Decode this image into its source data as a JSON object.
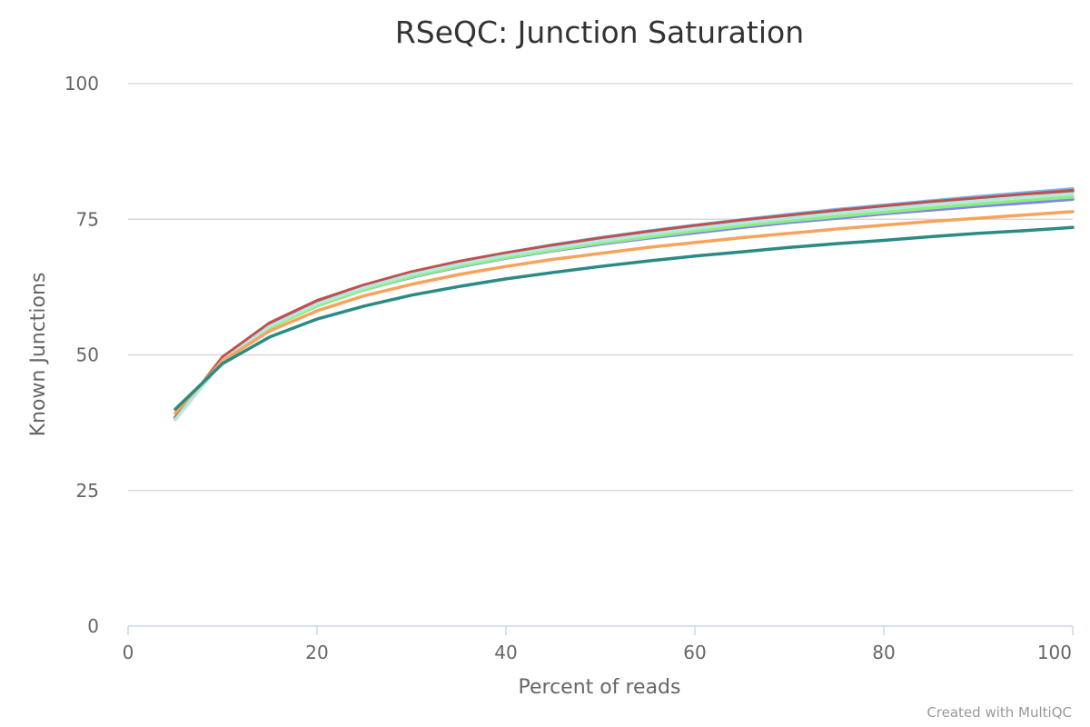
{
  "chart_data": {
    "type": "line",
    "title": "RSeQC: Junction Saturation",
    "xlabel": "Percent of reads",
    "ylabel": "Known Junctions",
    "xlim": [
      0,
      100
    ],
    "ylim": [
      0,
      100
    ],
    "x_ticks": [
      "0",
      "20",
      "40",
      "60",
      "80",
      "100"
    ],
    "y_ticks": [
      "0",
      "25",
      "50",
      "75",
      "100"
    ],
    "grid": true,
    "credit": "Created with MultiQC",
    "x": [
      5,
      10,
      15,
      20,
      25,
      30,
      35,
      40,
      45,
      50,
      55,
      60,
      65,
      70,
      75,
      80,
      85,
      90,
      95,
      100
    ],
    "series": [
      {
        "color": "#7cb5ec",
        "values": [
          38.3,
          49.3,
          55.7,
          59.8,
          62.8,
          65.2,
          67.2,
          68.8,
          70.3,
          71.6,
          72.8,
          73.9,
          74.9,
          75.9,
          76.8,
          77.6,
          78.4,
          79.2,
          79.9,
          80.6
        ]
      },
      {
        "color": "#e4d354",
        "values": [
          38.6,
          49.2,
          55.3,
          59.3,
          62.2,
          64.5,
          66.4,
          68.0,
          69.4,
          70.6,
          71.7,
          72.7,
          73.7,
          74.6,
          75.4,
          76.2,
          76.9,
          77.6,
          78.3,
          78.9
        ]
      },
      {
        "color": "#f15c80",
        "values": [
          38.4,
          49.4,
          55.6,
          59.7,
          62.7,
          65.1,
          67.0,
          68.6,
          70.1,
          71.4,
          72.6,
          73.7,
          74.7,
          75.6,
          76.5,
          77.3,
          78.1,
          78.8,
          79.5,
          80.2
        ]
      },
      {
        "color": "#8085e9",
        "values": [
          38.5,
          49.2,
          55.2,
          59.1,
          62.0,
          64.3,
          66.2,
          67.8,
          69.2,
          70.4,
          71.5,
          72.5,
          73.5,
          74.4,
          75.2,
          76.0,
          76.7,
          77.4,
          78.0,
          78.7
        ]
      },
      {
        "color": "#c0504d",
        "values": [
          38.4,
          49.6,
          55.9,
          60.0,
          62.9,
          65.3,
          67.2,
          68.8,
          70.2,
          71.5,
          72.7,
          73.8,
          74.8,
          75.7,
          76.6,
          77.4,
          78.2,
          78.9,
          79.6,
          80.3
        ]
      },
      {
        "color": "#90ed7d",
        "values": [
          38.1,
          48.9,
          55.0,
          59.0,
          62.0,
          64.4,
          66.3,
          67.9,
          69.3,
          70.6,
          71.7,
          72.8,
          73.8,
          74.7,
          75.5,
          76.3,
          77.1,
          77.8,
          78.5,
          79.1
        ]
      },
      {
        "color": "#b2e8e3",
        "values": [
          38.0,
          49.0,
          55.3,
          59.4,
          62.4,
          64.8,
          66.7,
          68.3,
          69.7,
          71.0,
          72.2,
          73.3,
          74.3,
          75.2,
          76.1,
          76.9,
          77.7,
          78.4,
          79.1,
          79.7
        ]
      },
      {
        "color": "#f7a35c",
        "values": [
          39.3,
          48.9,
          54.4,
          58.1,
          60.9,
          63.0,
          64.8,
          66.3,
          67.6,
          68.7,
          69.8,
          70.7,
          71.6,
          72.4,
          73.2,
          73.9,
          74.6,
          75.2,
          75.8,
          76.4
        ]
      },
      {
        "color": "#2a8b84",
        "values": [
          40.0,
          48.4,
          53.3,
          56.6,
          59.0,
          61.0,
          62.6,
          64.0,
          65.2,
          66.3,
          67.3,
          68.2,
          69.0,
          69.8,
          70.5,
          71.1,
          71.8,
          72.4,
          72.9,
          73.5
        ]
      }
    ]
  }
}
